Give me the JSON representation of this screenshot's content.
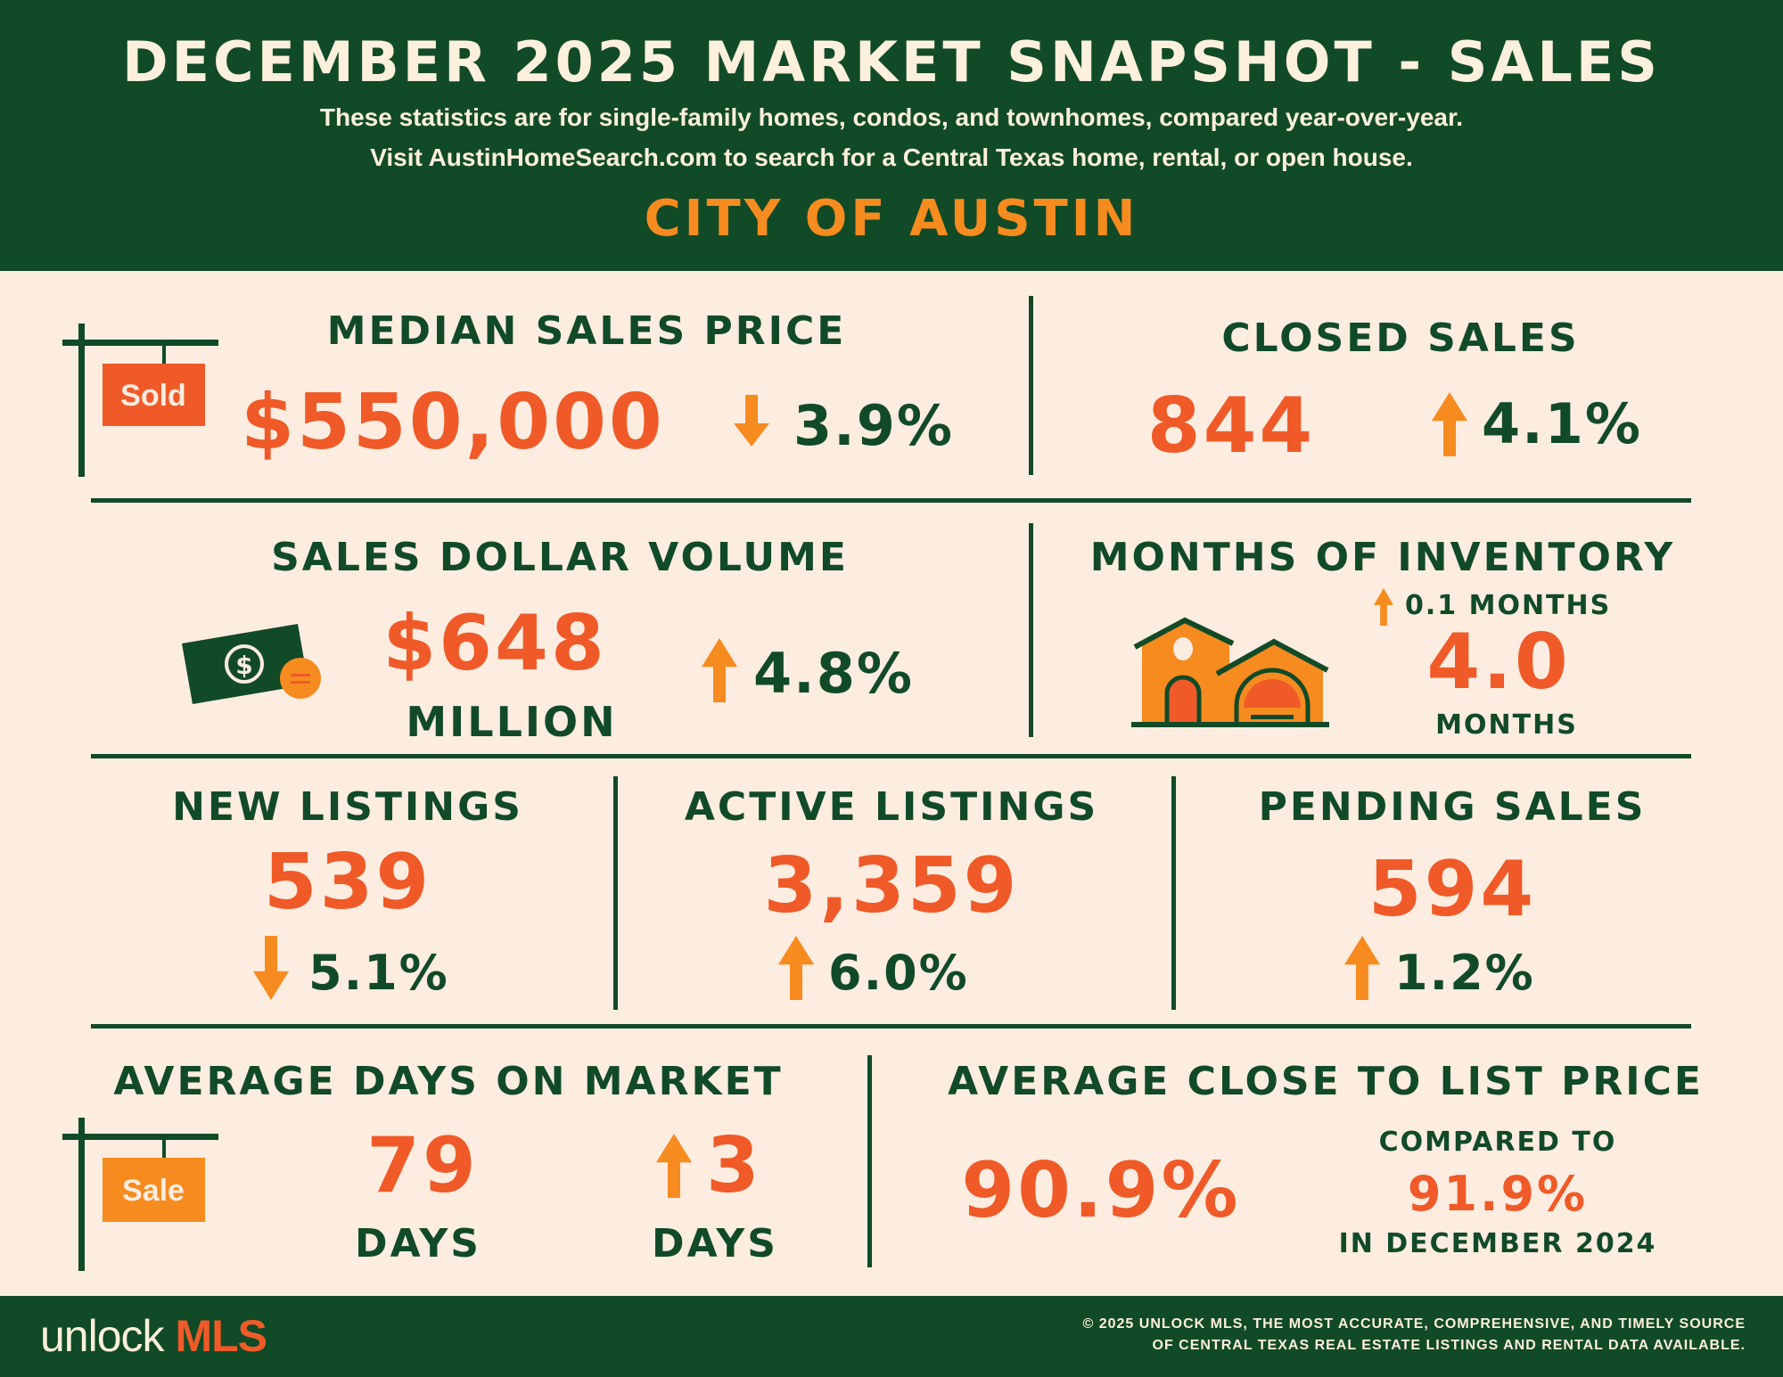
{
  "header": {
    "title": "DECEMBER 2025 MARKET SNAPSHOT - SALES",
    "subtitle_line1": "These statistics are for single-family homes, condos, and townhomes, compared year-over-year.",
    "subtitle_line2": "Visit AustinHomeSearch.com to search for a Central Texas home, rental, or open house.",
    "region": "CITY OF AUSTIN"
  },
  "colors": {
    "dark_green": "#114a27",
    "background": "#fdece0",
    "accent_red": "#ef5a28",
    "accent_orange": "#f68b1f",
    "title_cream": "#fdf0dc"
  },
  "median_sales_price": {
    "label": "MEDIAN SALES PRICE",
    "sign_text": "Sold",
    "value": "$550,000",
    "direction": "down",
    "change": "3.9%"
  },
  "closed_sales": {
    "label": "CLOSED SALES",
    "value": "844",
    "direction": "up",
    "change": "4.1%"
  },
  "sales_dollar_volume": {
    "label": "SALES DOLLAR VOLUME",
    "value": "$648",
    "unit": "MILLION",
    "direction": "up",
    "change": "4.8%",
    "icon": "money-icon"
  },
  "months_of_inventory": {
    "label": "MONTHS OF INVENTORY",
    "direction": "up",
    "change": "0.1  MONTHS",
    "value": "4.0",
    "unit": "MONTHS",
    "icon": "house-icon"
  },
  "new_listings": {
    "label": "NEW LISTINGS",
    "value": "539",
    "direction": "down",
    "change": "5.1%"
  },
  "active_listings": {
    "label": "ACTIVE LISTINGS",
    "value": "3,359",
    "direction": "up",
    "change": "6.0%"
  },
  "pending_sales": {
    "label": "PENDING SALES",
    "value": "594",
    "direction": "up",
    "change": "1.2%"
  },
  "avg_days_on_market": {
    "label": "AVERAGE DAYS ON MARKET",
    "sign_text": "Sale",
    "value": "79",
    "unit": "DAYS",
    "direction": "up",
    "change": "3",
    "change_unit": "DAYS"
  },
  "avg_close_to_list": {
    "label": "AVERAGE CLOSE TO LIST PRICE",
    "value": "90.9%",
    "compared_label": "COMPARED TO",
    "compared_value": "91.9%",
    "compared_period": "IN DECEMBER 2024"
  },
  "footer": {
    "logo_part1": "unlock",
    "logo_part2": "MLS",
    "copyright_line1": "© 2025 UNLOCK MLS, THE MOST ACCURATE, COMPREHENSIVE, AND TIMELY SOURCE",
    "copyright_line2": "OF CENTRAL TEXAS REAL ESTATE LISTINGS AND RENTAL DATA AVAILABLE."
  }
}
